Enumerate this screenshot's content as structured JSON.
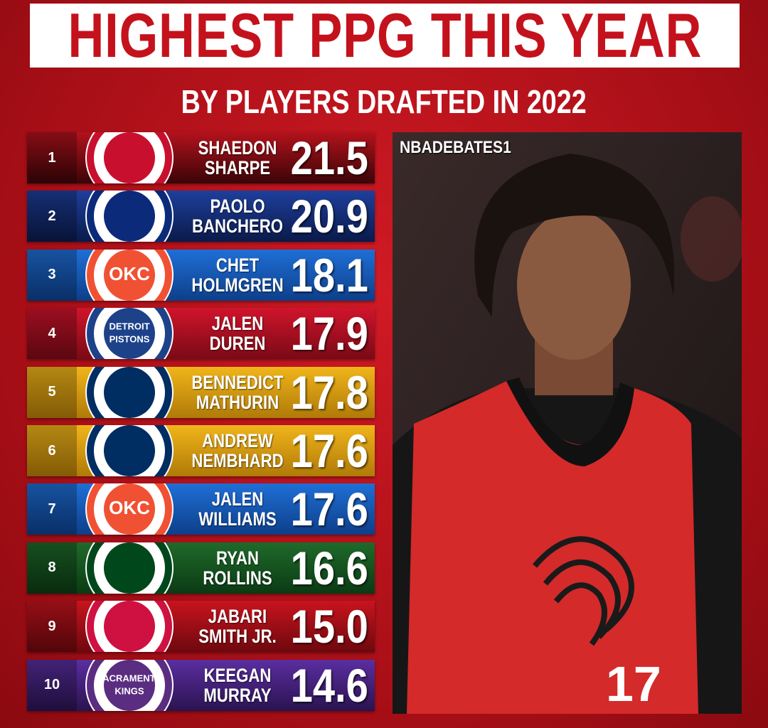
{
  "header": {
    "title": "HIGHEST PPG THIS YEAR",
    "subtitle": "BY PLAYERS DRAFTED IN 2022"
  },
  "rows": [
    {
      "rank": "1",
      "name": [
        "SHAEDON",
        "SHARPE"
      ],
      "ppg": "21.5"
    },
    {
      "rank": "2",
      "name": [
        "PAOLO",
        "BANCHERO"
      ],
      "ppg": "20.9"
    },
    {
      "rank": "3",
      "name": [
        "CHET",
        "HOLMGREN"
      ],
      "ppg": "18.1",
      "logo_text": [
        "OKC"
      ]
    },
    {
      "rank": "4",
      "name": [
        "JALEN",
        "DUREN"
      ],
      "ppg": "17.9",
      "logo_text": [
        "DETROIT",
        "PISTONS"
      ]
    },
    {
      "rank": "5",
      "name": [
        "BENNEDICT",
        "MATHURIN"
      ],
      "ppg": "17.8"
    },
    {
      "rank": "6",
      "name": [
        "ANDREW",
        "NEMBHARD"
      ],
      "ppg": "17.6"
    },
    {
      "rank": "7",
      "name": [
        "JALEN",
        "WILLIAMS"
      ],
      "ppg": "17.6",
      "logo_text": [
        "OKC"
      ]
    },
    {
      "rank": "8",
      "name": [
        "RYAN",
        "ROLLINS"
      ],
      "ppg": "16.6"
    },
    {
      "rank": "9",
      "name": [
        "JABARI",
        "SMITH JR."
      ],
      "ppg": "15.0"
    },
    {
      "rank": "10",
      "name": [
        "KEEGAN",
        "MURRAY"
      ],
      "ppg": "14.6",
      "logo_text": [
        "SACRAMENTO",
        "KINGS"
      ]
    }
  ],
  "photo": {
    "watermark": "NBADEBATES1"
  }
}
